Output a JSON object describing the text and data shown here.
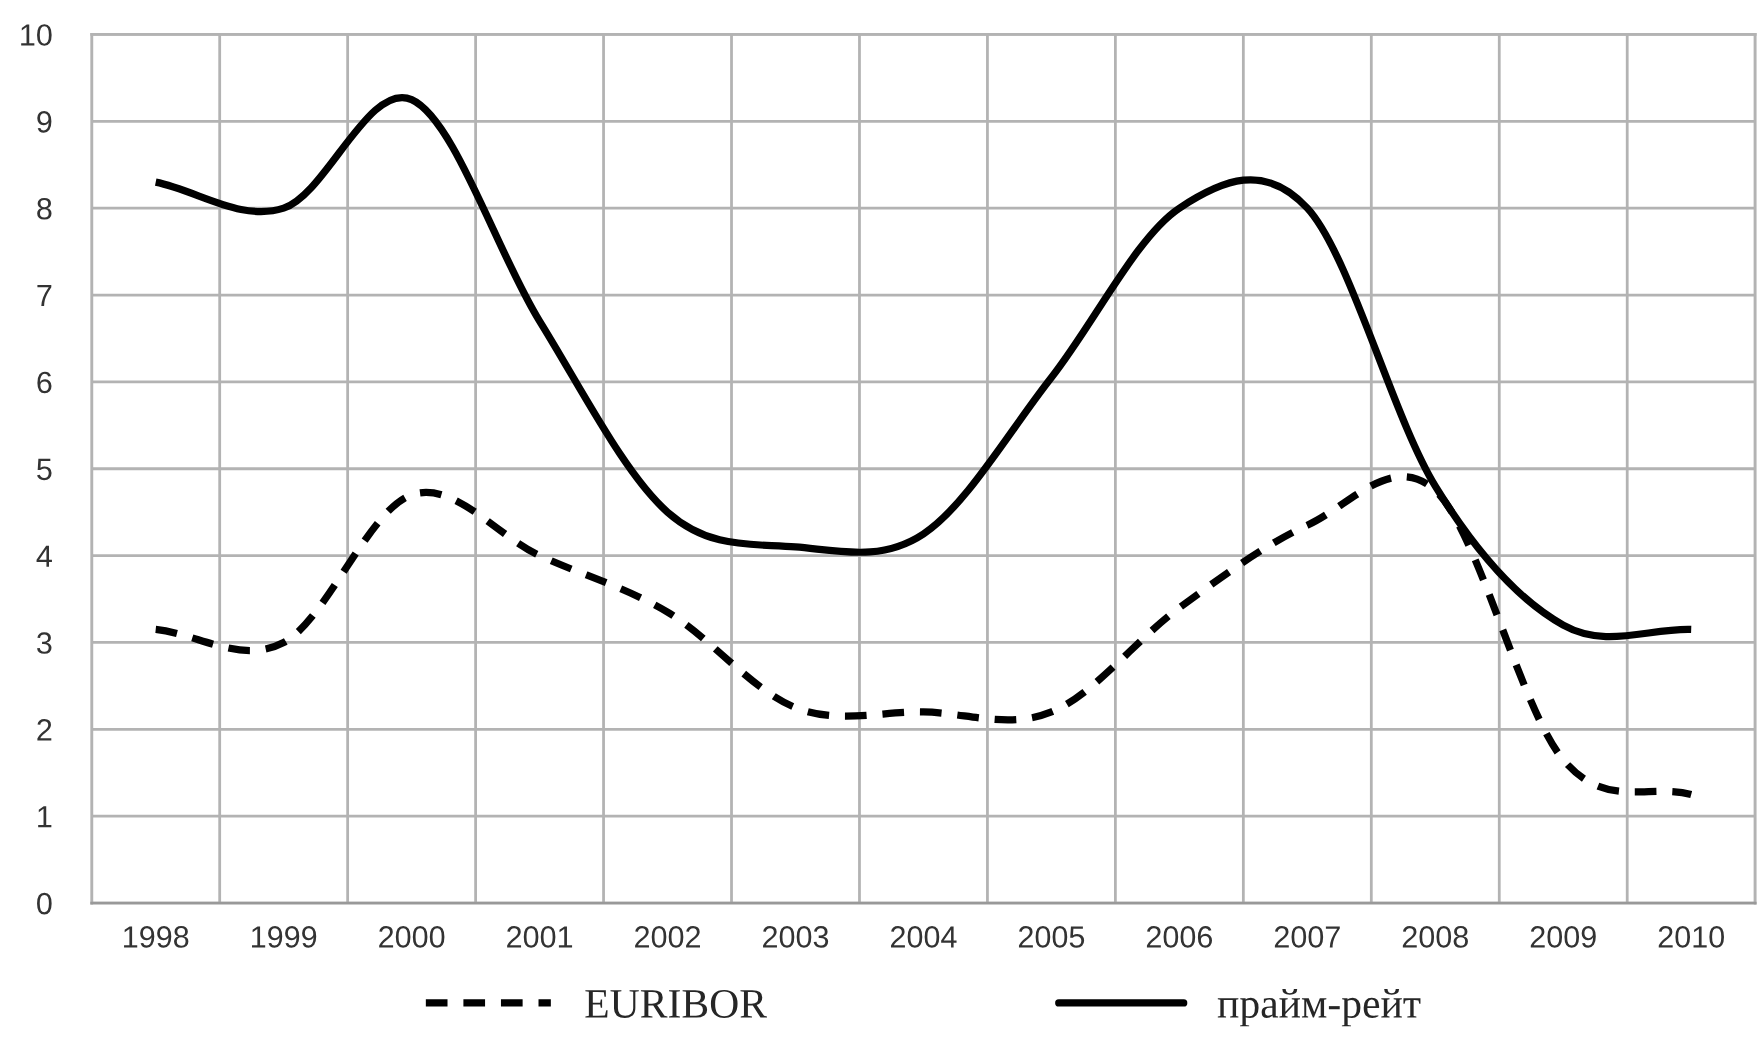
{
  "chart_data": {
    "type": "line",
    "categories": [
      "1998",
      "1999",
      "2000",
      "2001",
      "2002",
      "2003",
      "2004",
      "2005",
      "2006",
      "2007",
      "2008",
      "2009",
      "2010"
    ],
    "series": [
      {
        "name": "EURIBOR",
        "color": "#000000",
        "line_style": "dashed",
        "values": [
          3.15,
          3.0,
          4.7,
          4.0,
          3.35,
          2.25,
          2.2,
          2.2,
          3.4,
          4.35,
          4.75,
          1.65,
          1.25
        ]
      },
      {
        "name": "прайм-рейт",
        "color": "#000000",
        "line_style": "solid",
        "values": [
          8.3,
          8.0,
          9.25,
          6.7,
          4.5,
          4.1,
          4.25,
          6.05,
          8.0,
          8.0,
          4.8,
          3.2,
          3.15
        ]
      }
    ],
    "ylim": [
      0,
      10
    ],
    "yticks": [
      0,
      1,
      2,
      3,
      4,
      5,
      6,
      7,
      8,
      9,
      10
    ],
    "grid": true,
    "legend": "bottom",
    "marker": "none"
  }
}
